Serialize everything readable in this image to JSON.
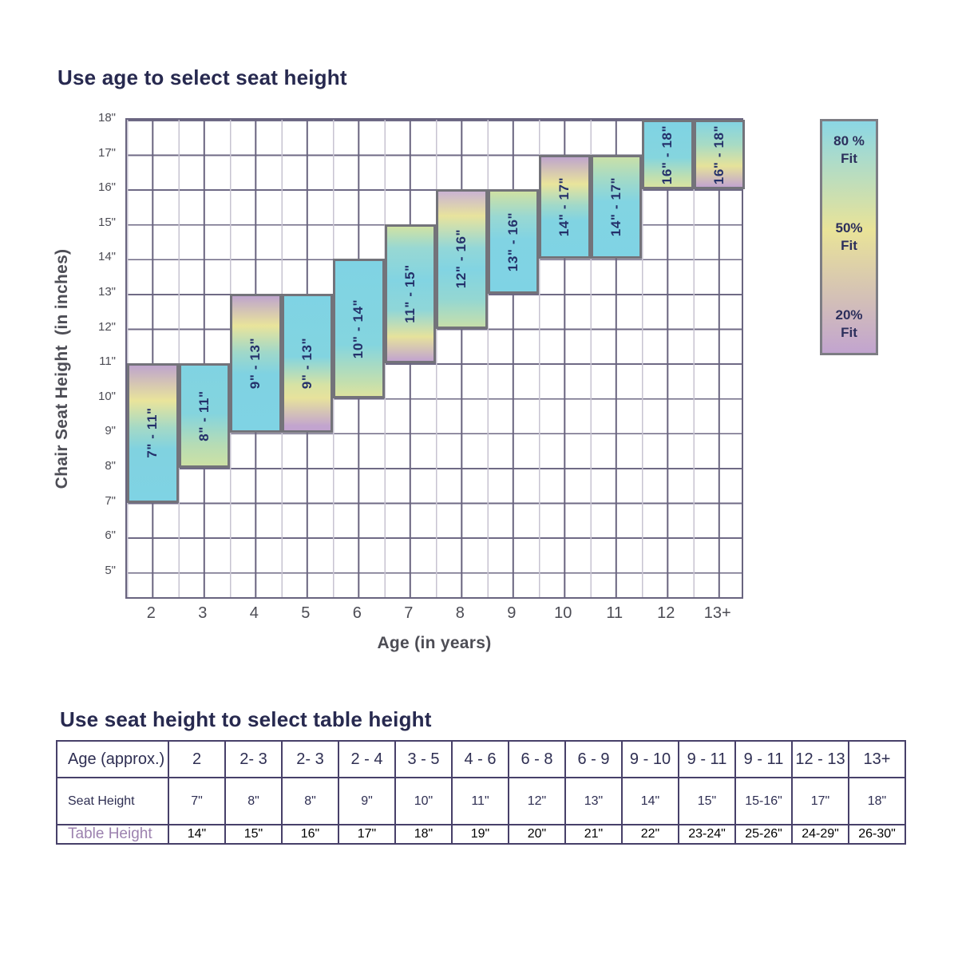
{
  "chart": {
    "title": "Use age to select seat height",
    "y_axis_title": "Chair Seat Height  (in inches)",
    "x_axis_title": "Age (in years)",
    "y_ticks": [
      {
        "value": 18,
        "label": "18\""
      },
      {
        "value": 17,
        "label": "17\""
      },
      {
        "value": 16,
        "label": "16\""
      },
      {
        "value": 15,
        "label": "15\""
      },
      {
        "value": 14,
        "label": "14\""
      },
      {
        "value": 13,
        "label": "13\""
      },
      {
        "value": 12,
        "label": "12\""
      },
      {
        "value": 11,
        "label": "11\""
      },
      {
        "value": 10,
        "label": "10\""
      },
      {
        "value": 9,
        "label": "9\""
      },
      {
        "value": 8,
        "label": "8\""
      },
      {
        "value": 7,
        "label": "7\""
      },
      {
        "value": 6,
        "label": "6\""
      },
      {
        "value": 5,
        "label": "5\""
      }
    ],
    "x_ticks": [
      "2",
      "3",
      "4",
      "5",
      "6",
      "7",
      "8",
      "9",
      "10",
      "11",
      "12",
      "13+"
    ]
  },
  "chart_data": {
    "type": "bar",
    "subtype": "vertical-range-bars",
    "xlabel": "Age (in years)",
    "ylabel": "Chair Seat Height (in inches)",
    "ylim": [
      4.2,
      18
    ],
    "x_categories": [
      "2",
      "3",
      "4",
      "5",
      "6",
      "7",
      "8",
      "9",
      "10",
      "11",
      "12",
      "13+"
    ],
    "bars": [
      {
        "age": "2",
        "label": "7\" - 11\"",
        "low": 7,
        "high": 11,
        "gradient": [
          "#bfa5cd 0%",
          "#e9e49b 26%",
          "#a4d9c6 46%",
          "#80d2e0 62%",
          "#7fd3e4 100%"
        ]
      },
      {
        "age": "3",
        "label": "8\" - 11\"",
        "low": 8,
        "high": 11,
        "gradient": [
          "#80d3e2 0%",
          "#84d4de 48%",
          "#b7dcb4 80%",
          "#cce1a5 100%"
        ]
      },
      {
        "age": "4",
        "label": "9\" - 13\"",
        "low": 9,
        "high": 13,
        "gradient": [
          "#bfa5cd 0%",
          "#e9e49b 22%",
          "#a0d8c9 42%",
          "#7fd2e2 58%",
          "#7fd3e4 100%"
        ]
      },
      {
        "age": "5",
        "label": "9\" - 13\"",
        "low": 9,
        "high": 13,
        "gradient": [
          "#7fd3e4 0%",
          "#82d4e0 45%",
          "#d6e2a4 66%",
          "#e7e29c 76%",
          "#c2a4cf 97%"
        ]
      },
      {
        "age": "6",
        "label": "10\" - 14\"",
        "low": 10,
        "high": 14,
        "gradient": [
          "#7fd3e4 0%",
          "#84d5df 62%",
          "#c3dfae 90%",
          "#dce3a0 100%"
        ]
      },
      {
        "age": "7",
        "label": "11\" - 15\"",
        "low": 11,
        "high": 15,
        "gradient": [
          "#cfe2a4 0%",
          "#98d8d3 16%",
          "#82d4e2 40%",
          "#8fd6d8 62%",
          "#e6e29c 82%",
          "#c2a4cf 100%"
        ]
      },
      {
        "age": "8",
        "label": "12\" - 16\"",
        "low": 12,
        "high": 16,
        "gradient": [
          "#cab3d3 0%",
          "#e8e39d 18%",
          "#92d7d8 42%",
          "#82d4e2 58%",
          "#94d7d2 80%",
          "#c6dfab 100%"
        ]
      },
      {
        "age": "9",
        "label": "13\" - 16\"",
        "low": 13,
        "high": 16,
        "gradient": [
          "#cfe1a3 0%",
          "#99d8d2 25%",
          "#81d3e3 48%",
          "#7fd3e4 100%"
        ]
      },
      {
        "age": "10",
        "label": "14\" - 17\"",
        "low": 14,
        "high": 17,
        "gradient": [
          "#bfa5cd 0%",
          "#e9e49b 27%",
          "#a2d9c8 48%",
          "#80d3e2 64%",
          "#7fd3e4 100%"
        ]
      },
      {
        "age": "11",
        "label": "14\" - 17\"",
        "low": 14,
        "high": 17,
        "gradient": [
          "#c9e0a8 0%",
          "#a3dac7 22%",
          "#82d4e2 45%",
          "#7fd3e4 100%"
        ]
      },
      {
        "age": "12",
        "label": "16\" - 18\"",
        "low": 16,
        "high": 18,
        "gradient": [
          "#7fd3e4 0%",
          "#85d5de 55%",
          "#c0dfb0 85%",
          "#d8e3a1 100%"
        ]
      },
      {
        "age": "13+",
        "label": "16\" - 18\"",
        "low": 16,
        "high": 18,
        "gradient": [
          "#83d4e2 0%",
          "#a8dbc4 35%",
          "#e6e29a 68%",
          "#c2a4cf 100%"
        ]
      }
    ],
    "legend": {
      "position": "top-right",
      "gradient": [
        "#8bd7e5 0%",
        "#e9e398 47%",
        "#c2a4cf 100%"
      ],
      "entries": [
        {
          "pct": "80 %",
          "word": "Fit",
          "color": "#8bd7e5"
        },
        {
          "pct": "50%",
          "word": "Fit",
          "color": "#e9e398"
        },
        {
          "pct": "20%",
          "word": "Fit",
          "color": "#c2a4cf"
        }
      ]
    },
    "grid": "on"
  },
  "table": {
    "title": "Use seat height to select table height",
    "rows": [
      {
        "label": "Age (approx.)",
        "cells": [
          "2",
          "2- 3",
          "2- 3",
          "2 - 4",
          "3 - 5",
          "4 - 6",
          "6 - 8",
          "6 - 9",
          "9 - 10",
          "9 - 11",
          "9 - 11",
          "12 - 13",
          "13+"
        ]
      },
      {
        "label": "Seat Height",
        "cells": [
          "7\"",
          "8\"",
          "8\"",
          "9\"",
          "10\"",
          "11\"",
          "12\"",
          "13\"",
          "14\"",
          "15\"",
          "15-16\"",
          "17\"",
          "18\""
        ]
      },
      {
        "label": "Table Height",
        "cells": [
          "14\"",
          "15\"",
          "16\"",
          "17\"",
          "18\"",
          "19\"",
          "20\"",
          "21\"",
          "22\"",
          "23-24\"",
          "25-26\"",
          "24-29\"",
          "26-30\""
        ]
      }
    ]
  },
  "colors": {
    "title_navy": "#27294f",
    "bar_label_navy": "#24306a",
    "fit_80_cyan": "#7fd3e4",
    "fit_50_yellow": "#e9e49b",
    "fit_20_purple": "#c2a4cf",
    "grid_dark": "#69647f",
    "grid_light": "#c7c3d1",
    "bar_border_gray": "#73737a",
    "table_border_purple": "#474069",
    "table_label_purple": "#9c82af",
    "axis_text_gray": "#4c4c54"
  }
}
